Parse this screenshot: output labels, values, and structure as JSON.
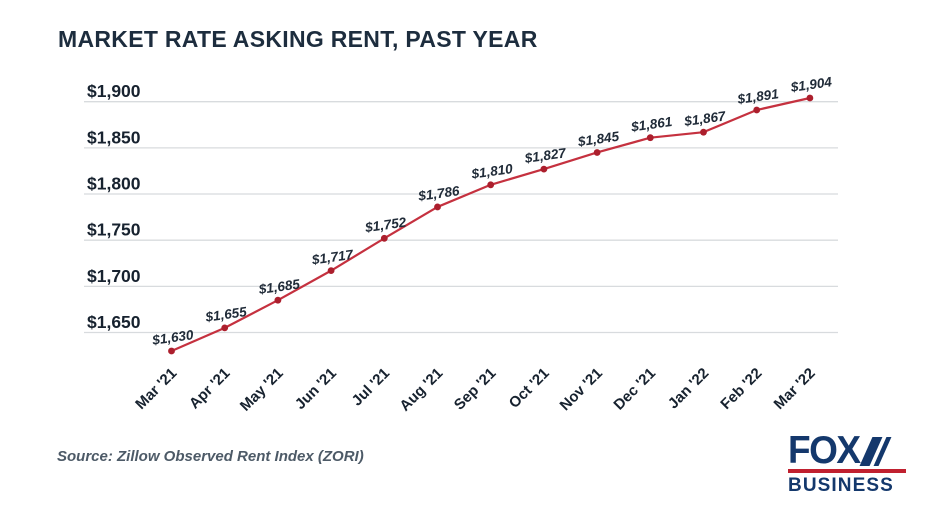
{
  "title": "MARKET RATE ASKING RENT, PAST YEAR",
  "source": "Source: Zillow Observed Rent Index (ZORI)",
  "logo": {
    "fox": "FOX",
    "business": "BUSINESS"
  },
  "colors": {
    "title_text": "#1d2d3e",
    "axis_text": "#17222f",
    "point_label_text": "#202b38",
    "gridline": "#d8dbde",
    "line": "#c5313f",
    "marker": "#ac1f2d",
    "source_text": "#4d5a67",
    "logo_navy": "#14386c",
    "logo_red": "#c0202f",
    "background": "#ffffff"
  },
  "chart_data": {
    "type": "line",
    "title": "MARKET RATE ASKING RENT, PAST YEAR",
    "xlabel": "",
    "ylabel": "",
    "categories": [
      "Mar '21",
      "Apr '21",
      "May '21",
      "Jun '21",
      "Jul '21",
      "Aug '21",
      "Sep '21",
      "Oct '21",
      "Nov '21",
      "Dec '21",
      "Jan '22",
      "Feb '22",
      "Mar '22"
    ],
    "values": [
      1630,
      1655,
      1685,
      1717,
      1752,
      1786,
      1810,
      1827,
      1845,
      1861,
      1867,
      1891,
      1904
    ],
    "point_labels": [
      "$1,630",
      "$1,655",
      "$1,685",
      "$1,717",
      "$1,752",
      "$1,786",
      "$1,810",
      "$1,827",
      "$1,845",
      "$1,861",
      "$1,867",
      "$1,891",
      "$1,904"
    ],
    "yticks": [
      1650,
      1700,
      1750,
      1800,
      1850,
      1900
    ],
    "ytick_labels": [
      "$1,650",
      "$1,700",
      "$1,750",
      "$1,800",
      "$1,850",
      "$1,900"
    ],
    "ylim": [
      1620,
      1915
    ],
    "grid": "horizontal",
    "legend": false,
    "marker": "dot",
    "point_labels_shown": true
  }
}
